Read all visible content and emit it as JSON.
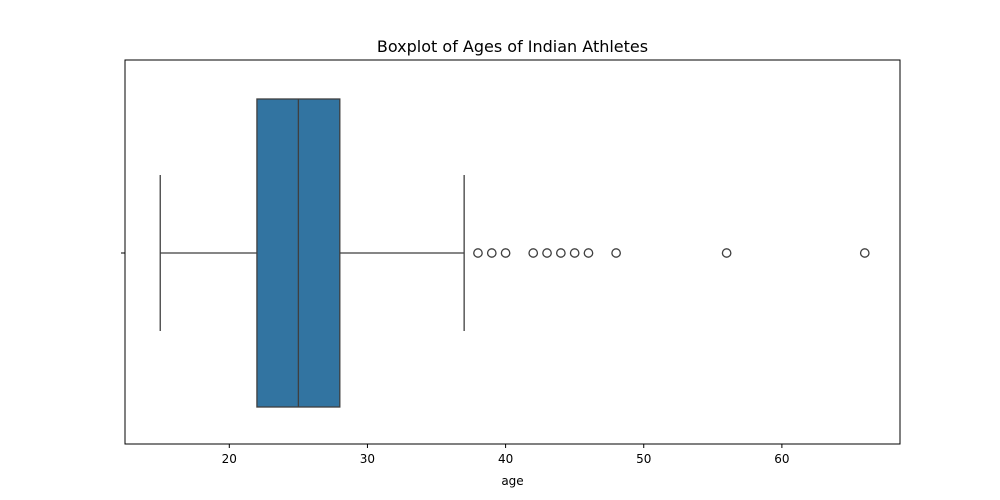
{
  "chart_data": {
    "type": "boxplot",
    "title": "Boxplot of Ages of Indian Athletes",
    "xlabel": "age",
    "ylabel": "",
    "xlim": [
      12.45,
      68.55
    ],
    "xticks": [
      20,
      30,
      40,
      50,
      60
    ],
    "xtick_labels": [
      "20",
      "30",
      "40",
      "50",
      "60"
    ],
    "orientation": "horizontal",
    "grid": false,
    "box": {
      "whisker_low": 15,
      "q1": 22,
      "median": 25,
      "q3": 28,
      "whisker_high": 37
    },
    "outliers": [
      38,
      39,
      40,
      42,
      43,
      44,
      45,
      46,
      48,
      56,
      66
    ],
    "colors": {
      "box_fill": "#3274a1",
      "line": "#3f3f3f",
      "axes": "#000000",
      "background": "#ffffff"
    }
  }
}
